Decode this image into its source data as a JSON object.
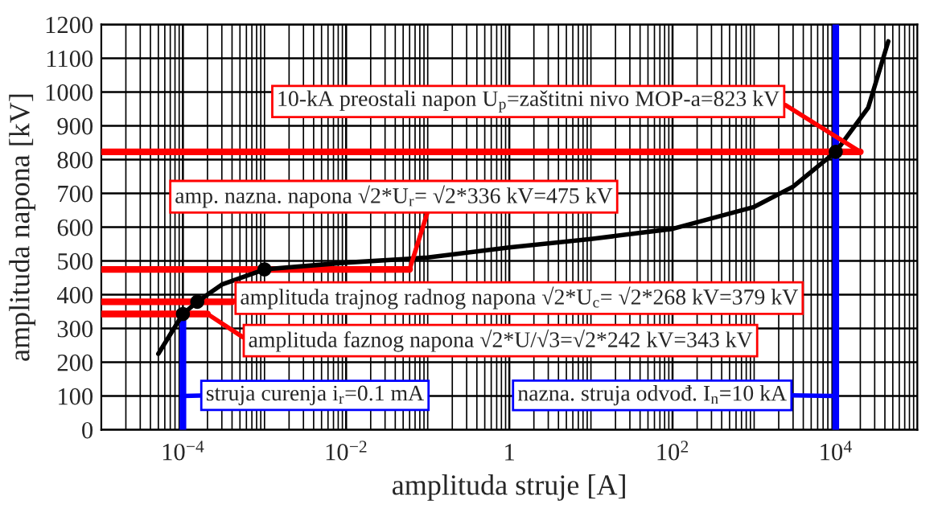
{
  "chart_data": {
    "type": "line",
    "xlabel": "amplituda struje [A]",
    "ylabel": "amplituda napona [kV]",
    "log": "x",
    "grid": true,
    "xlim": [
      1e-05,
      100000
    ],
    "xticks": [
      {
        "value": 0.0001,
        "label": "10$^{−4}$"
      },
      {
        "value": 0.01,
        "label": "10$^{−2}$"
      },
      {
        "value": 1,
        "label": "1"
      },
      {
        "value": 100,
        "label": "10$^{2}$"
      },
      {
        "value": 10000,
        "label": "10$^{4}$"
      }
    ],
    "ylim": [
      0,
      1200
    ],
    "yticks": [
      0,
      100,
      200,
      300,
      400,
      500,
      600,
      700,
      800,
      900,
      1000,
      1100,
      1200
    ],
    "series": [
      {
        "color": "#ff0000",
        "x": [
          1e-05,
          20000
        ],
        "values": [
          823,
          823
        ]
      },
      {
        "color": "#ff0000",
        "x": [
          1e-05,
          0.06
        ],
        "values": [
          475,
          475
        ]
      },
      {
        "color": "#ff0000",
        "x": [
          1e-05,
          0.0004
        ],
        "values": [
          379,
          379
        ]
      },
      {
        "color": "#ff0000",
        "x": [
          1e-05,
          0.0002
        ],
        "values": [
          343,
          343
        ]
      },
      {
        "color": "#0000ff",
        "x": [
          0.0001,
          0.0001
        ],
        "values": [
          0,
          343
        ]
      },
      {
        "color": "#0000ff",
        "x": [
          10000,
          10000
        ],
        "values": [
          0,
          1200
        ]
      },
      {
        "color": "#000000",
        "x": [
          5e-05,
          0.0001,
          0.00015,
          0.0003,
          0.001,
          0.01,
          0.1,
          1,
          10,
          100,
          1000,
          3000,
          10000,
          25000,
          44000
        ],
        "values": [
          225,
          343,
          379,
          430,
          475,
          495,
          510,
          540,
          565,
          595,
          660,
          720,
          823,
          954,
          1150
        ]
      },
      {
        "type": "scatter",
        "color": "#000000",
        "x": [
          0.0001,
          0.00015,
          0.001,
          10000
        ],
        "values": [
          343,
          379,
          475,
          823
        ]
      }
    ],
    "annotations": [
      {
        "text": "10-kA preostali napon U$_{p}$=zaštitni nivo MOP-a=823 kV",
        "x": 20000,
        "y": 823
      },
      {
        "text": "amp. nazna. napona √2*U$_{r}$= √2*336 kV=475 kV",
        "x": 0.06,
        "y": 475
      },
      {
        "text": "amplituda trajnog radnog napona √2*U$_{c}$= √2*268 kV=379 kV",
        "x": 0.0004,
        "y": 379
      },
      {
        "text": "amplituda faznog napona √2*U/√3=√2*242 kV=343 kV",
        "x": 0.0002,
        "y": 343
      },
      {
        "text": "struja curenja i$_{r}$=0.1 mA",
        "x": 0.0001,
        "y": 100
      },
      {
        "text": "nazna. struja odvođ. I$_{n}$=10 kA",
        "x": 10000,
        "y": 100
      }
    ]
  }
}
